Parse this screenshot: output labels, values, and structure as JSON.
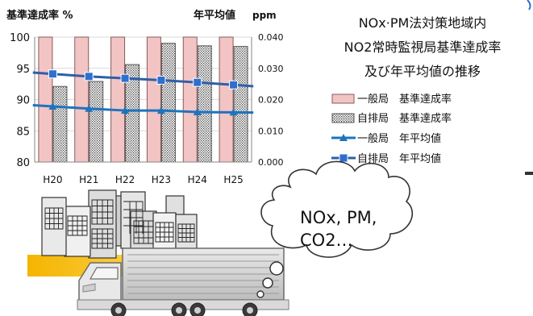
{
  "chart_data": {
    "type": "bar",
    "title_lines": [
      "NOx·PM法対策地域内",
      "NO2常時監視局基準達成率",
      "及び年平均値の推移"
    ],
    "ylabel_left": "基準達成率 %",
    "ylabel_right": "年平均値",
    "ylabel_right_unit": "ppm",
    "categories": [
      "H20",
      "H21",
      "H22",
      "H23",
      "H24",
      "H25"
    ],
    "left_axis": {
      "ylim": [
        80,
        100
      ],
      "ticks": [
        "80",
        "85",
        "90",
        "95",
        "100"
      ]
    },
    "right_axis": {
      "ylim": [
        0,
        0.04
      ],
      "ticks": [
        "0.000",
        "0.010",
        "0.020",
        "0.030",
        "0.040"
      ]
    },
    "series": [
      {
        "name": "一般局　基準達成率",
        "kind": "bar",
        "axis": "left",
        "style": "pink",
        "values": [
          100,
          100,
          100,
          100,
          100,
          100
        ]
      },
      {
        "name": "自排局　基準達成率",
        "kind": "bar",
        "axis": "left",
        "style": "dotted",
        "values": [
          92.1,
          92.9,
          95.6,
          99.0,
          98.6,
          98.5
        ]
      },
      {
        "name": "一般局　年平均値",
        "kind": "line",
        "axis": "right",
        "marker": "triangle",
        "values": [
          0.0178,
          0.0171,
          0.0165,
          0.0165,
          0.016,
          0.0159
        ]
      },
      {
        "name": "自排局　年平均値",
        "kind": "line",
        "axis": "right",
        "marker": "square",
        "values": [
          0.0282,
          0.0274,
          0.0268,
          0.0262,
          0.0255,
          0.0247
        ]
      }
    ],
    "legend": "right",
    "grid": true
  },
  "colors": {
    "pink_fill": "#f2c4c4",
    "pink_stroke": "#8a5a5a",
    "line_general": "#1e73be",
    "line_roadside": "#2e5fa8",
    "marker_square": "#2e6fcf",
    "grid": "#d9d9d9",
    "axis": "#868686"
  },
  "illustration": {
    "bubble_lines": [
      "NOx, PM,",
      "CO2…"
    ],
    "icons": [
      "city-buildings-icon",
      "truck-icon",
      "thought-bubble-icon"
    ]
  }
}
